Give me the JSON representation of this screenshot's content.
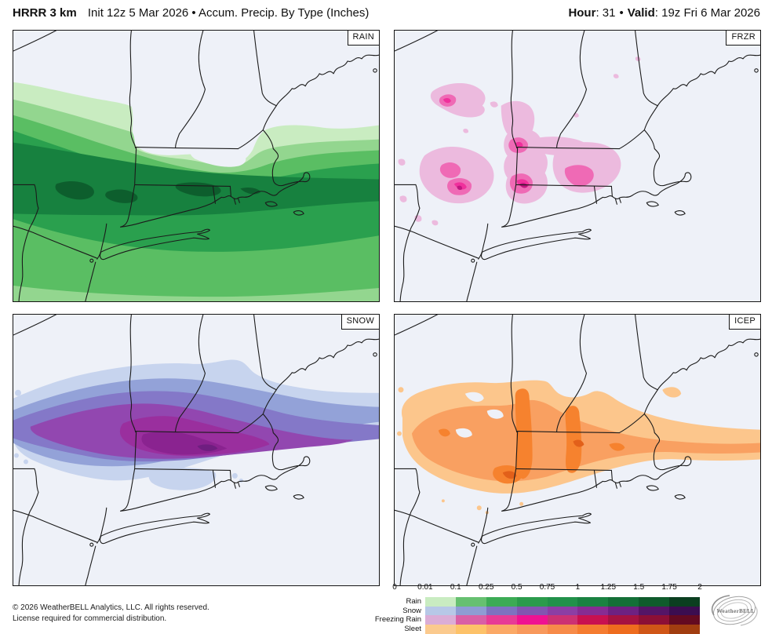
{
  "header": {
    "model": "HRRR 3 km",
    "subtitle": "Init 12z 5 Mar 2026 • Accum. Precip. By Type (Inches)",
    "hour_label": "Hour",
    "hour_value": ": 31",
    "separator": "•",
    "valid_label": "Valid",
    "valid_value": ": 19z Fri 6 Mar 2026"
  },
  "panels": [
    {
      "id": "rain",
      "label": "RAIN"
    },
    {
      "id": "frzr",
      "label": "FRZR"
    },
    {
      "id": "snow",
      "label": "SNOW"
    },
    {
      "id": "icep",
      "label": "ICEP"
    }
  ],
  "map": {
    "background": "#eef1f8",
    "border_color": "#151515",
    "boundary_color": "#1b1b1b"
  },
  "legend": {
    "units": "Inches",
    "ticks": [
      "0",
      "0.01",
      "0.1",
      "0.25",
      "0.5",
      "0.75",
      "1",
      "1.25",
      "1.5",
      "1.75",
      "2"
    ],
    "rows": [
      {
        "label": "Rain",
        "colors": [
          "#c9ecc1",
          "#66c070",
          "#3cab55",
          "#2b9b4c",
          "#22914a",
          "#1a8241",
          "#146f37",
          "#0f5b2c",
          "#0b3f20"
        ]
      },
      {
        "label": "Snow",
        "colors": [
          "#b7c8e7",
          "#8e9cd3",
          "#7e72c0",
          "#8355b0",
          "#8c3ea4",
          "#872c92",
          "#6e2181",
          "#541566",
          "#3b0d50"
        ]
      },
      {
        "label": "Freezing Rain",
        "colors": [
          "#dbadd6",
          "#d95fa6",
          "#e73b96",
          "#ef1292",
          "#cc3173",
          "#c81150",
          "#a51241",
          "#8c0f36",
          "#630a21"
        ]
      },
      {
        "label": "Sleet",
        "colors": [
          "#fbca8e",
          "#fdc269",
          "#fba966",
          "#f8995c",
          "#f78b49",
          "#f57c30",
          "#ee6c1e",
          "#d05617",
          "#a13d10"
        ]
      }
    ]
  },
  "footer": {
    "line1": "© 2026 WeatherBELL Analytics, LLC. All rights reserved.",
    "line2": "License required for commercial distribution."
  },
  "logo": {
    "text": "WeatherBELL"
  }
}
